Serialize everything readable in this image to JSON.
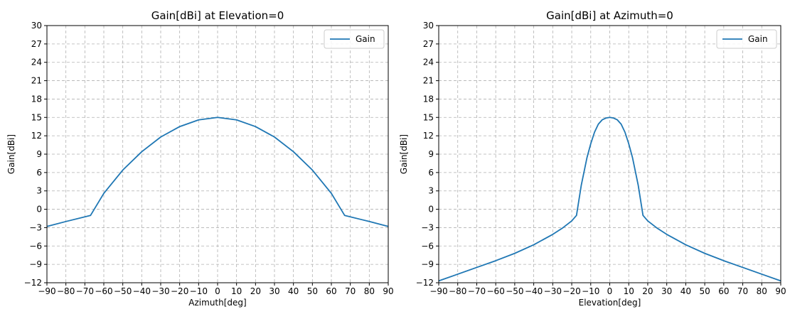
{
  "chart_data": [
    {
      "type": "line",
      "title": "Gain[dBi] at Elevation=0",
      "xlabel": "Azimuth[deg]",
      "ylabel": "Gain[dBi]",
      "xlim": [
        -90,
        90
      ],
      "ylim": [
        -12,
        30
      ],
      "xticks": [
        -90,
        -80,
        -70,
        -60,
        -50,
        -40,
        -30,
        -20,
        -10,
        0,
        10,
        20,
        30,
        40,
        50,
        60,
        70,
        80,
        90
      ],
      "xtick_labels": [
        "−90",
        "−80",
        "−70",
        "−60",
        "−50",
        "−40",
        "−30",
        "−20",
        "−10",
        "0",
        "10",
        "20",
        "30",
        "40",
        "50",
        "60",
        "70",
        "80",
        "90"
      ],
      "yticks": [
        -12,
        -9,
        -6,
        -3,
        0,
        3,
        6,
        9,
        12,
        15,
        18,
        21,
        24,
        27,
        30
      ],
      "ytick_labels": [
        "−12",
        "−9",
        "−6",
        "−3",
        "0",
        "3",
        "6",
        "9",
        "12",
        "15",
        "18",
        "21",
        "24",
        "27",
        "30"
      ],
      "grid": true,
      "legend_position": "top-right",
      "series": [
        {
          "name": "Gain",
          "color": "#1f77b4",
          "x": [
            -90,
            -80,
            -67,
            -60,
            -50,
            -40,
            -30,
            -20,
            -10,
            0,
            10,
            20,
            30,
            40,
            50,
            60,
            67,
            80,
            90
          ],
          "y": [
            -2.8,
            -2.0,
            -1.0,
            2.6,
            6.4,
            9.4,
            11.8,
            13.5,
            14.6,
            15.0,
            14.6,
            13.5,
            11.8,
            9.4,
            6.4,
            2.6,
            -1.0,
            -2.0,
            -2.8
          ]
        }
      ]
    },
    {
      "type": "line",
      "title": "Gain[dBi] at Azimuth=0",
      "xlabel": "Elevation[deg]",
      "ylabel": "Gain[dBi]",
      "xlim": [
        -90,
        90
      ],
      "ylim": [
        -12,
        30
      ],
      "xticks": [
        -90,
        -80,
        -70,
        -60,
        -50,
        -40,
        -30,
        -20,
        -10,
        0,
        10,
        20,
        30,
        40,
        50,
        60,
        70,
        80,
        90
      ],
      "xtick_labels": [
        "−90",
        "−80",
        "−70",
        "−60",
        "−50",
        "−40",
        "−30",
        "−20",
        "−10",
        "0",
        "10",
        "20",
        "30",
        "40",
        "50",
        "60",
        "70",
        "80",
        "90"
      ],
      "yticks": [
        -12,
        -9,
        -6,
        -3,
        0,
        3,
        6,
        9,
        12,
        15,
        18,
        21,
        24,
        27,
        30
      ],
      "ytick_labels": [
        "−12",
        "−9",
        "−6",
        "−3",
        "0",
        "3",
        "6",
        "9",
        "12",
        "15",
        "18",
        "21",
        "24",
        "27",
        "30"
      ],
      "grid": true,
      "legend_position": "top-right",
      "series": [
        {
          "name": "Gain",
          "color": "#1f77b4",
          "x": [
            -90,
            -80,
            -70,
            -60,
            -50,
            -40,
            -30,
            -25,
            -20,
            -17.5,
            -15,
            -12,
            -10,
            -8,
            -6,
            -4,
            -2,
            0,
            2,
            4,
            6,
            8,
            10,
            12,
            15,
            17.5,
            20,
            25,
            30,
            40,
            50,
            60,
            70,
            80,
            90
          ],
          "y": [
            -11.7,
            -10.6,
            -9.5,
            -8.4,
            -7.2,
            -5.8,
            -4.1,
            -3.1,
            -1.9,
            -1.0,
            3.9,
            8.4,
            10.7,
            12.6,
            13.9,
            14.6,
            14.9,
            15.0,
            14.9,
            14.6,
            13.9,
            12.6,
            10.7,
            8.4,
            3.9,
            -1.0,
            -1.9,
            -3.1,
            -4.1,
            -5.8,
            -7.2,
            -8.4,
            -9.5,
            -10.6,
            -11.7
          ]
        }
      ]
    }
  ]
}
